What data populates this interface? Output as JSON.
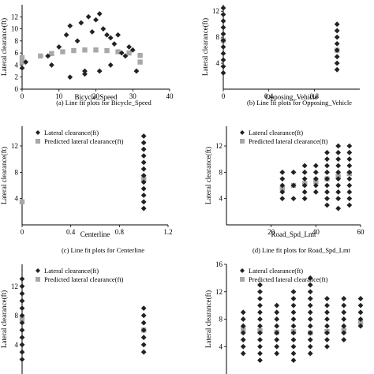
{
  "colors": {
    "actual": "#222222",
    "predicted": "#a8a8a8"
  },
  "legend": {
    "actual": "Lateral clearance(ft)",
    "predicted": "Predicted lateral clearance(ft)"
  },
  "chart_data": [
    {
      "type": "scatter",
      "caption": "(a)    Line fit plots for Bicycle_Speed",
      "xlabel": "Bicycle_Speed",
      "ylabel": "Lateral clearance(ft)",
      "xlim": [
        0,
        40
      ],
      "ylim": [
        0,
        14
      ],
      "xticks": [
        0,
        10,
        20,
        30,
        40
      ],
      "yticks": [
        0,
        2,
        4,
        6,
        8,
        10,
        12
      ],
      "legend": false,
      "series": [
        {
          "role": "actual",
          "points": [
            [
              0,
              3.5
            ],
            [
              1,
              4.5
            ],
            [
              7,
              5.5
            ],
            [
              8,
              4
            ],
            [
              10,
              7
            ],
            [
              12,
              9
            ],
            [
              13,
              10.5
            ],
            [
              15,
              8
            ],
            [
              16,
              11
            ],
            [
              17,
              3
            ],
            [
              18,
              12
            ],
            [
              19,
              9.5
            ],
            [
              20,
              11.5
            ],
            [
              21,
              12.5
            ],
            [
              22,
              10
            ],
            [
              23,
              9
            ],
            [
              24,
              8.5
            ],
            [
              25,
              7.5
            ],
            [
              26,
              9
            ],
            [
              27,
              6
            ],
            [
              28,
              5.5
            ],
            [
              29,
              7
            ],
            [
              30,
              6.5
            ],
            [
              13,
              2
            ],
            [
              17,
              2.5
            ],
            [
              21,
              3
            ],
            [
              24,
              4
            ],
            [
              31,
              3
            ]
          ]
        },
        {
          "role": "predicted",
          "points": [
            [
              0,
              4.5
            ],
            [
              0,
              5.2
            ],
            [
              5,
              5.5
            ],
            [
              8,
              5.9
            ],
            [
              11,
              6.2
            ],
            [
              14,
              6.4
            ],
            [
              17,
              6.5
            ],
            [
              20,
              6.5
            ],
            [
              23,
              6.4
            ],
            [
              26,
              6.2
            ],
            [
              29,
              6.0
            ],
            [
              32,
              5.6
            ],
            [
              32,
              4.5
            ]
          ]
        }
      ]
    },
    {
      "type": "scatter",
      "caption": "(b)    Line fit plots for Opposing_Vehicle",
      "xlabel": "Opposing_Vehicle",
      "ylabel": "Lateral clearance(ft)",
      "xlim": [
        0,
        1.2
      ],
      "ylim": [
        0,
        13
      ],
      "xticks": [
        0,
        0.4,
        0.8
      ],
      "yticks": [
        4,
        8,
        12
      ],
      "legend": false,
      "series": [
        {
          "role": "actual",
          "points": [
            [
              0,
              2.5
            ],
            [
              0,
              3.5
            ],
            [
              0,
              4.5
            ],
            [
              0,
              5.5
            ],
            [
              0,
              6.5
            ],
            [
              0,
              7.5
            ],
            [
              0,
              8.5
            ],
            [
              0,
              9.5
            ],
            [
              0,
              10.5
            ],
            [
              0,
              11.5
            ],
            [
              0,
              12.5
            ],
            [
              1,
              3
            ],
            [
              1,
              4
            ],
            [
              1,
              5
            ],
            [
              1,
              6
            ],
            [
              1,
              7
            ],
            [
              1,
              8
            ],
            [
              1,
              9
            ],
            [
              1,
              10
            ]
          ]
        },
        {
          "role": "predicted",
          "points": [
            [
              0,
              7.5
            ],
            [
              1,
              6.0
            ]
          ]
        }
      ]
    },
    {
      "type": "scatter",
      "caption": "(c)    Line fit plots for Centerline",
      "xlabel": "Centerline",
      "ylabel": "Lateral clearance(ft)",
      "xlim": [
        0,
        1.2
      ],
      "ylim": [
        0,
        15
      ],
      "xticks": [
        0,
        0.4,
        0.8,
        1.2
      ],
      "yticks": [
        4,
        8,
        12
      ],
      "legend": true,
      "series": [
        {
          "role": "actual",
          "points": [
            [
              1,
              2.5
            ],
            [
              1,
              3.5
            ],
            [
              1,
              4.5
            ],
            [
              1,
              5.5
            ],
            [
              1,
              6.5
            ],
            [
              1,
              7.5
            ],
            [
              1,
              8.5
            ],
            [
              1,
              9.5
            ],
            [
              1,
              10.5
            ],
            [
              1,
              11.5
            ],
            [
              1,
              12.5
            ],
            [
              1,
              13.5
            ]
          ]
        },
        {
          "role": "predicted",
          "points": [
            [
              0,
              3.5
            ],
            [
              1,
              7.0
            ]
          ]
        }
      ]
    },
    {
      "type": "scatter",
      "caption": "(d)    Line fit plots for Road_Spd_Lmt",
      "xlabel": "Road_Spd_Lmt",
      "ylabel": "Lateral clearance(ft)",
      "xlim": [
        0,
        60
      ],
      "ylim": [
        0,
        15
      ],
      "xticks": [
        20,
        40,
        60
      ],
      "yticks": [
        4,
        8,
        12
      ],
      "legend": true,
      "series": [
        {
          "role": "actual",
          "points": [
            [
              25,
              4
            ],
            [
              25,
              5
            ],
            [
              25,
              6
            ],
            [
              25,
              7
            ],
            [
              25,
              8
            ],
            [
              30,
              4
            ],
            [
              30,
              6
            ],
            [
              30,
              8
            ],
            [
              35,
              4
            ],
            [
              35,
              5
            ],
            [
              35,
              6
            ],
            [
              35,
              7
            ],
            [
              35,
              8
            ],
            [
              35,
              9
            ],
            [
              40,
              5
            ],
            [
              40,
              6
            ],
            [
              40,
              7
            ],
            [
              40,
              8
            ],
            [
              40,
              9
            ],
            [
              45,
              3
            ],
            [
              45,
              4
            ],
            [
              45,
              5
            ],
            [
              45,
              6
            ],
            [
              45,
              7
            ],
            [
              45,
              8
            ],
            [
              45,
              9
            ],
            [
              45,
              10
            ],
            [
              45,
              11
            ],
            [
              50,
              2.5
            ],
            [
              50,
              4
            ],
            [
              50,
              5
            ],
            [
              50,
              6
            ],
            [
              50,
              7
            ],
            [
              50,
              8
            ],
            [
              50,
              9
            ],
            [
              50,
              10
            ],
            [
              50,
              11
            ],
            [
              50,
              12
            ],
            [
              55,
              3
            ],
            [
              55,
              4
            ],
            [
              55,
              5
            ],
            [
              55,
              6
            ],
            [
              55,
              7
            ],
            [
              55,
              8
            ],
            [
              55,
              9
            ],
            [
              55,
              10
            ],
            [
              55,
              11
            ],
            [
              55,
              12
            ]
          ]
        },
        {
          "role": "predicted",
          "points": [
            [
              25,
              5.5
            ],
            [
              30,
              6.0
            ],
            [
              35,
              6.3
            ],
            [
              40,
              6.6
            ],
            [
              45,
              7.0
            ],
            [
              50,
              7.4
            ],
            [
              55,
              7.8
            ]
          ]
        }
      ]
    },
    {
      "type": "scatter",
      "caption": "",
      "xlabel": "",
      "ylabel": "Lateral clearance(ft)",
      "xlim": [
        0,
        1.2
      ],
      "ylim": [
        0,
        15
      ],
      "xticks": [],
      "yticks": [
        4,
        8,
        12
      ],
      "legend": true,
      "series": [
        {
          "role": "actual",
          "points": [
            [
              0,
              2
            ],
            [
              0,
              3
            ],
            [
              0,
              4
            ],
            [
              0,
              5
            ],
            [
              0,
              6
            ],
            [
              0,
              7
            ],
            [
              0,
              8
            ],
            [
              0,
              9
            ],
            [
              0,
              10
            ],
            [
              0,
              11
            ],
            [
              0,
              12
            ],
            [
              0,
              13
            ],
            [
              1,
              3
            ],
            [
              1,
              4
            ],
            [
              1,
              5
            ],
            [
              1,
              6
            ],
            [
              1,
              7
            ],
            [
              1,
              8
            ],
            [
              1,
              9
            ]
          ]
        },
        {
          "role": "predicted",
          "points": [
            [
              0,
              7.5
            ],
            [
              1,
              6.0
            ]
          ]
        }
      ]
    },
    {
      "type": "scatter",
      "caption": "",
      "xlabel": "",
      "ylabel": "Lateral clearance(ft)",
      "xlim": [
        0,
        8
      ],
      "ylim": [
        0,
        16
      ],
      "xticks": [],
      "yticks": [
        4,
        8,
        12,
        16
      ],
      "legend": true,
      "series": [
        {
          "role": "actual",
          "points": [
            [
              1,
              3
            ],
            [
              1,
              4
            ],
            [
              1,
              5
            ],
            [
              1,
              6
            ],
            [
              1,
              7
            ],
            [
              1,
              8
            ],
            [
              1,
              9
            ],
            [
              2,
              2
            ],
            [
              2,
              3
            ],
            [
              2,
              4
            ],
            [
              2,
              5
            ],
            [
              2,
              6
            ],
            [
              2,
              7
            ],
            [
              2,
              8
            ],
            [
              2,
              9
            ],
            [
              2,
              10
            ],
            [
              2,
              11
            ],
            [
              2,
              12
            ],
            [
              2,
              13
            ],
            [
              3,
              3
            ],
            [
              3,
              4
            ],
            [
              3,
              5
            ],
            [
              3,
              6
            ],
            [
              3,
              7
            ],
            [
              3,
              8
            ],
            [
              3,
              9
            ],
            [
              3,
              10
            ],
            [
              4,
              2
            ],
            [
              4,
              3
            ],
            [
              4,
              4
            ],
            [
              4,
              5
            ],
            [
              4,
              6
            ],
            [
              4,
              7
            ],
            [
              4,
              8
            ],
            [
              4,
              9
            ],
            [
              4,
              10
            ],
            [
              4,
              11
            ],
            [
              4,
              12
            ],
            [
              5,
              3
            ],
            [
              5,
              4
            ],
            [
              5,
              5
            ],
            [
              5,
              6
            ],
            [
              5,
              7
            ],
            [
              5,
              8
            ],
            [
              5,
              9
            ],
            [
              5,
              10
            ],
            [
              5,
              11
            ],
            [
              5,
              12
            ],
            [
              5,
              13
            ],
            [
              5,
              14
            ],
            [
              6,
              4
            ],
            [
              6,
              5
            ],
            [
              6,
              6
            ],
            [
              6,
              7
            ],
            [
              6,
              8
            ],
            [
              6,
              9
            ],
            [
              6,
              10
            ],
            [
              6,
              11
            ],
            [
              7,
              5
            ],
            [
              7,
              6
            ],
            [
              7,
              7
            ],
            [
              7,
              8
            ],
            [
              7,
              9
            ],
            [
              7,
              10
            ],
            [
              7,
              11
            ],
            [
              8,
              7
            ],
            [
              8,
              8
            ],
            [
              8,
              9
            ],
            [
              8,
              10
            ],
            [
              8,
              11
            ]
          ]
        },
        {
          "role": "predicted",
          "points": [
            [
              1,
              6.5
            ],
            [
              2,
              6.3
            ],
            [
              3,
              6.1
            ],
            [
              4,
              6.2
            ],
            [
              5,
              6.0
            ],
            [
              6,
              6.2
            ],
            [
              7,
              6.4
            ],
            [
              8,
              7.5
            ]
          ]
        }
      ]
    }
  ]
}
